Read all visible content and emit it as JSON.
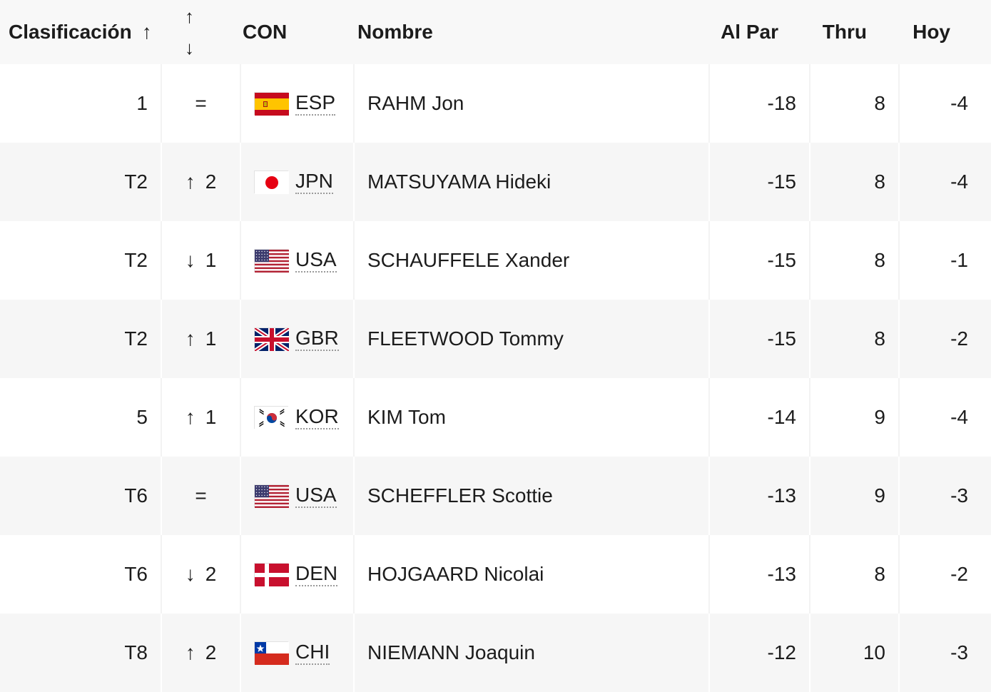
{
  "header": {
    "rank_label": "Clasificación",
    "rank_sort_icon": "↑",
    "move_sort_up_icon": "↑",
    "move_sort_down_icon": "↓",
    "con_label": "CON",
    "name_label": "Nombre",
    "par_label": "Al Par",
    "thru_label": "Thru",
    "hoy_label": "Hoy"
  },
  "rows": [
    {
      "rank": "1",
      "move_icon": "",
      "move_text": "=",
      "country": "ESP",
      "flag": "spain-flag-icon",
      "name": "RAHM Jon",
      "par": "-18",
      "thru": "8",
      "hoy": "-4"
    },
    {
      "rank": "T2",
      "move_icon": "↑",
      "move_text": "2",
      "country": "JPN",
      "flag": "japan-flag-icon",
      "name": "MATSUYAMA Hideki",
      "par": "-15",
      "thru": "8",
      "hoy": "-4"
    },
    {
      "rank": "T2",
      "move_icon": "↓",
      "move_text": "1",
      "country": "USA",
      "flag": "usa-flag-icon",
      "name": "SCHAUFFELE Xander",
      "par": "-15",
      "thru": "8",
      "hoy": "-1"
    },
    {
      "rank": "T2",
      "move_icon": "↑",
      "move_text": "1",
      "country": "GBR",
      "flag": "uk-flag-icon",
      "name": "FLEETWOOD Tommy",
      "par": "-15",
      "thru": "8",
      "hoy": "-2"
    },
    {
      "rank": "5",
      "move_icon": "↑",
      "move_text": "1",
      "country": "KOR",
      "flag": "korea-flag-icon",
      "name": "KIM Tom",
      "par": "-14",
      "thru": "9",
      "hoy": "-4"
    },
    {
      "rank": "T6",
      "move_icon": "",
      "move_text": "=",
      "country": "USA",
      "flag": "usa-flag-icon",
      "name": "SCHEFFLER Scottie",
      "par": "-13",
      "thru": "9",
      "hoy": "-3"
    },
    {
      "rank": "T6",
      "move_icon": "↓",
      "move_text": "2",
      "country": "DEN",
      "flag": "denmark-flag-icon",
      "name": "HOJGAARD Nicolai",
      "par": "-13",
      "thru": "8",
      "hoy": "-2"
    },
    {
      "rank": "T8",
      "move_icon": "↑",
      "move_text": "2",
      "country": "CHI",
      "flag": "chile-flag-icon",
      "name": "NIEMANN Joaquin",
      "par": "-12",
      "thru": "10",
      "hoy": "-3"
    }
  ],
  "colors": {
    "text": "#1c1c1c",
    "row_alt": "#f6f6f6",
    "header_bg": "#f8f8f8"
  }
}
